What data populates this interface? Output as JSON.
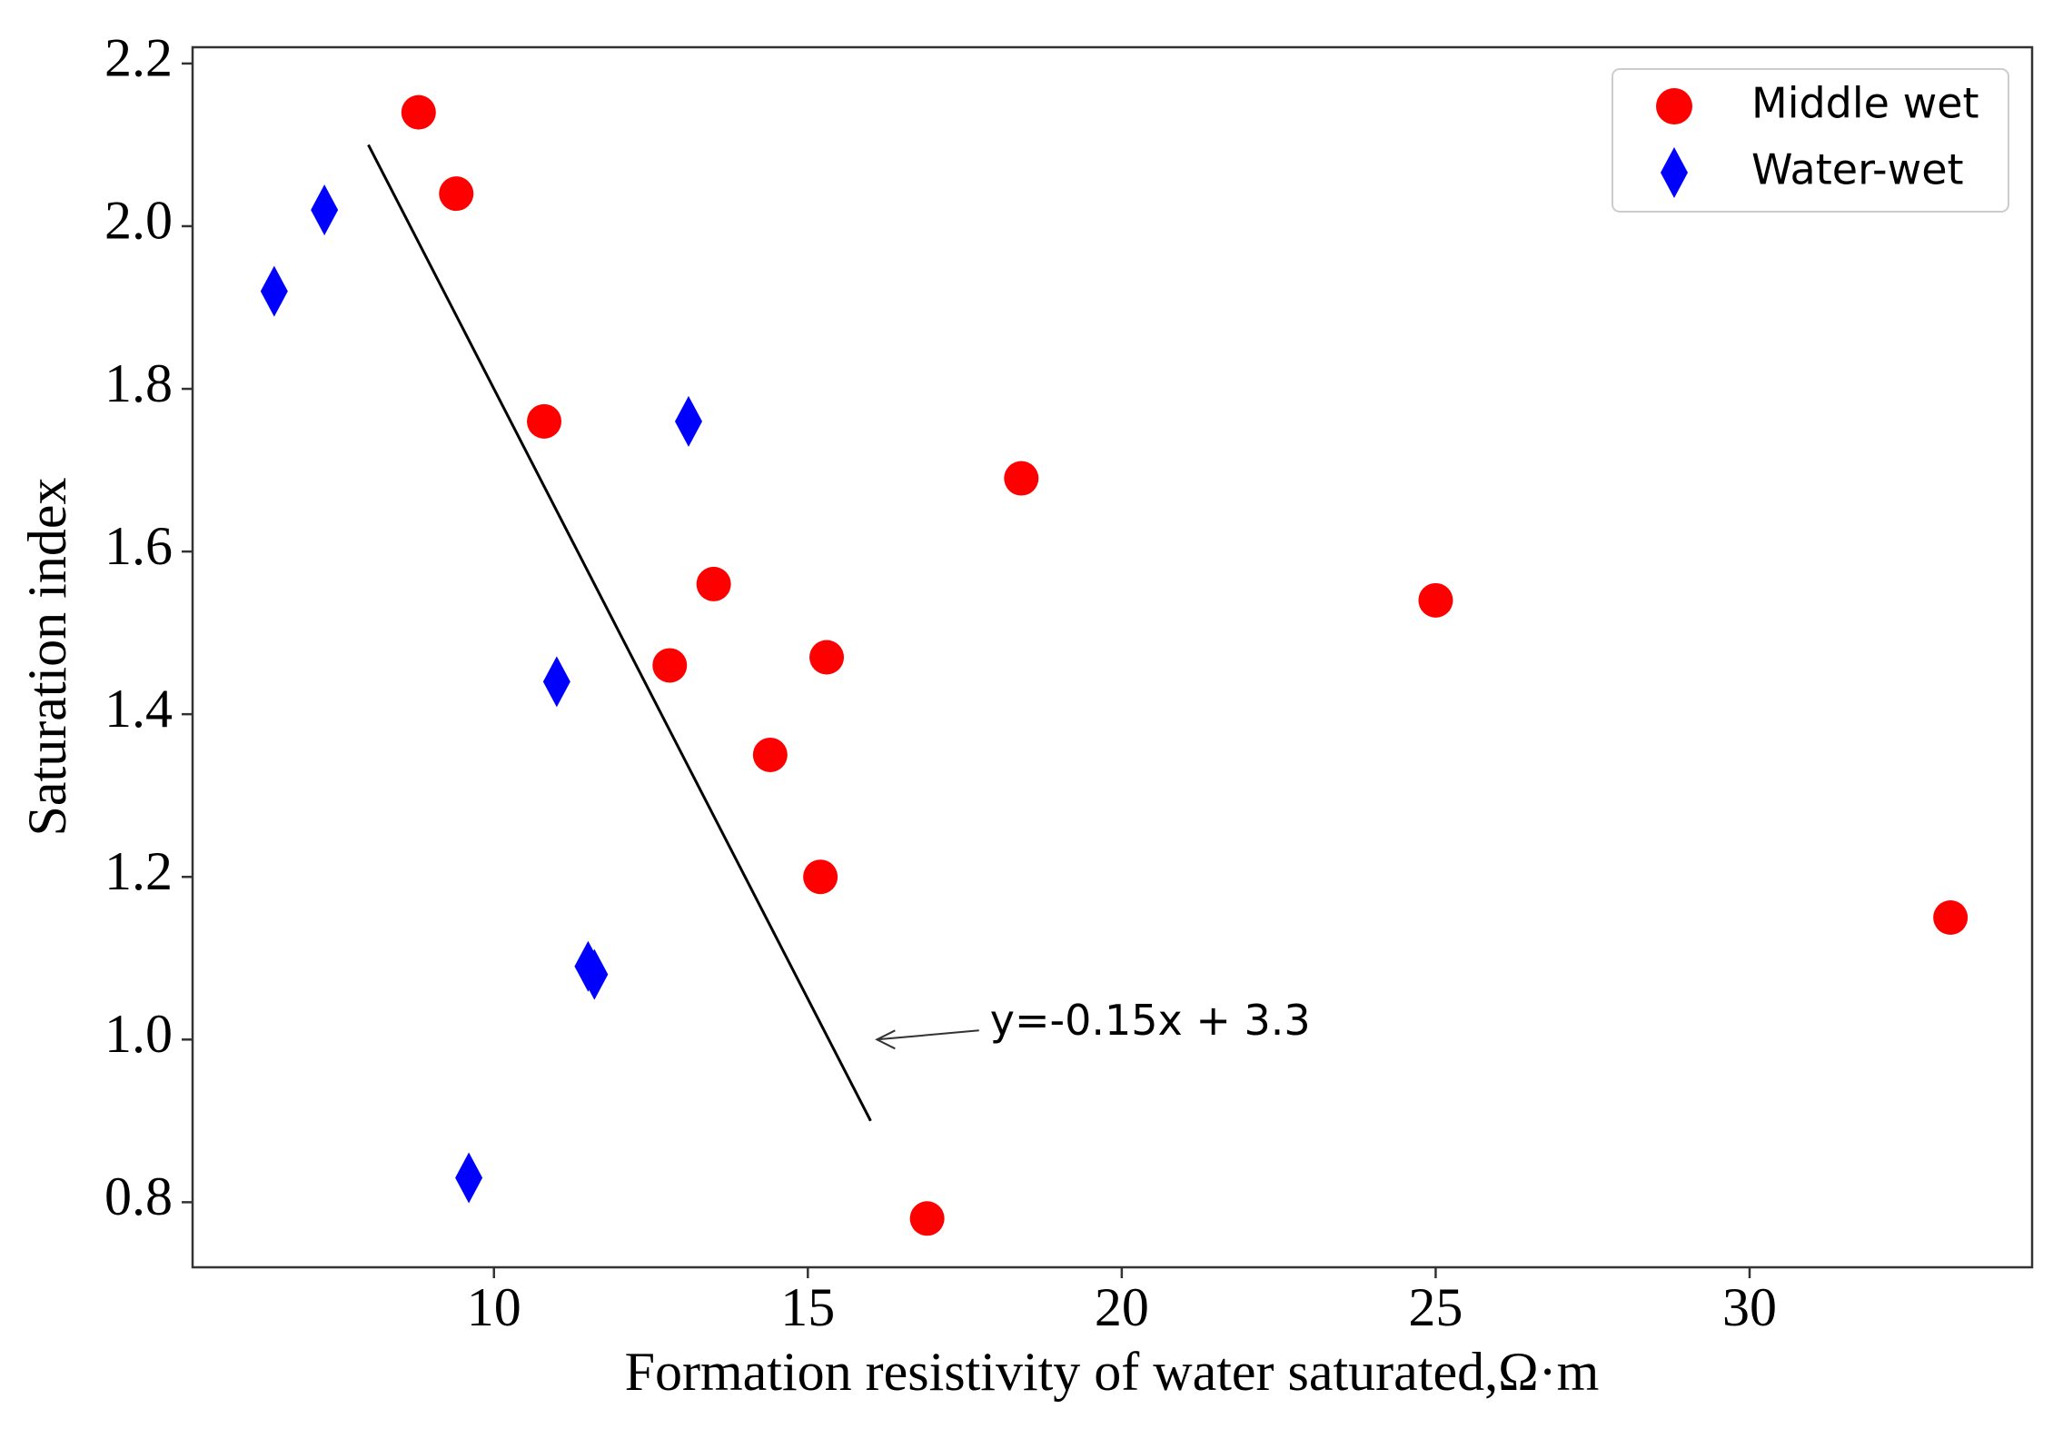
{
  "chart_data": {
    "type": "scatter",
    "xlabel": "Formation resistivity of water saturated,Ω·m",
    "ylabel": "Saturation index",
    "xlim": [
      5.2,
      34.5
    ],
    "ylim": [
      0.72,
      2.22
    ],
    "xticks": [
      10,
      15,
      20,
      25,
      30
    ],
    "yticks": [
      0.8,
      1.0,
      1.2,
      1.4,
      1.6,
      1.8,
      2.0,
      2.2
    ],
    "x_tick_labels": [
      "10",
      "15",
      "20",
      "25",
      "30"
    ],
    "y_tick_labels": [
      "0.8",
      "1.0",
      "1.2",
      "1.4",
      "1.6",
      "1.8",
      "2.0",
      "2.2"
    ],
    "grid": false,
    "legend_position": "top-right",
    "series": [
      {
        "name": "Middle wet",
        "marker": "circle",
        "color": "#ff0000",
        "points": [
          {
            "x": 8.8,
            "y": 2.14
          },
          {
            "x": 9.4,
            "y": 2.04
          },
          {
            "x": 10.8,
            "y": 1.76
          },
          {
            "x": 13.5,
            "y": 1.56
          },
          {
            "x": 12.8,
            "y": 1.46
          },
          {
            "x": 15.3,
            "y": 1.47
          },
          {
            "x": 14.4,
            "y": 1.35
          },
          {
            "x": 15.2,
            "y": 1.2
          },
          {
            "x": 18.4,
            "y": 1.69
          },
          {
            "x": 16.9,
            "y": 0.78
          },
          {
            "x": 25.0,
            "y": 1.54
          },
          {
            "x": 33.2,
            "y": 1.15
          }
        ]
      },
      {
        "name": "Water-wet",
        "marker": "diamond",
        "color": "#0000ff",
        "points": [
          {
            "x": 6.5,
            "y": 1.92
          },
          {
            "x": 7.3,
            "y": 2.02
          },
          {
            "x": 13.1,
            "y": 1.76
          },
          {
            "x": 11.0,
            "y": 1.44
          },
          {
            "x": 11.6,
            "y": 1.08
          },
          {
            "x": 11.5,
            "y": 1.09
          },
          {
            "x": 9.6,
            "y": 0.83
          }
        ]
      }
    ],
    "fit_line": {
      "label": "y=-0.15x + 3.3",
      "color": "#000000",
      "start": {
        "x": 8.0,
        "y": 2.1
      },
      "end": {
        "x": 16.0,
        "y": 0.9
      },
      "annotation_arrow_tip": {
        "x": 16.1,
        "y": 1.0
      },
      "annotation_text_anchor": {
        "x": 17.9,
        "y": 1.0
      }
    }
  }
}
